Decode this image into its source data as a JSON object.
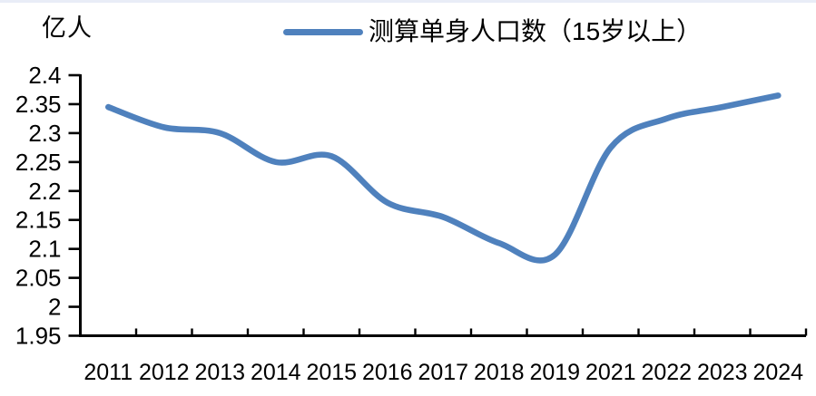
{
  "chart_data": {
    "type": "line",
    "title": "",
    "ylabel": "亿人",
    "xlabel": "",
    "categories": [
      "2011",
      "2012",
      "2013",
      "2014",
      "2015",
      "2016",
      "2017",
      "2018",
      "2019",
      "2021",
      "2022",
      "2023",
      "2024"
    ],
    "series": [
      {
        "name": "测算单身人口数（15岁以上）",
        "values": [
          2.345,
          2.31,
          2.3,
          2.25,
          2.26,
          2.18,
          2.155,
          2.11,
          2.09,
          2.275,
          2.325,
          2.345,
          2.365
        ]
      }
    ],
    "ylim": [
      1.95,
      2.4
    ],
    "y_ticks": [
      2.4,
      2.35,
      2.3,
      2.25,
      2.2,
      2.15,
      2.1,
      2.05,
      2,
      1.95
    ],
    "y_tick_labels": [
      "2.4",
      "2.35",
      "2.3",
      "2.25",
      "2.2",
      "2.15",
      "2.1",
      "2.05",
      "2",
      "1.95"
    ],
    "grid": false,
    "legend_position": "top-center",
    "smooth": true,
    "line_color": "#4F81BD",
    "axis_color": "#000000",
    "text_color": "#000000",
    "background_color": "#ffffff"
  }
}
